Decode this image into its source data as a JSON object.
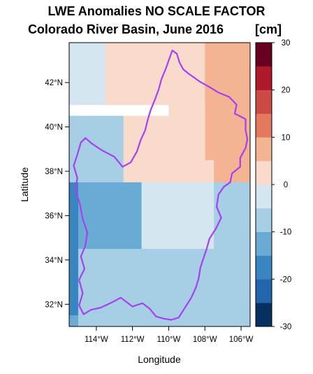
{
  "chart_data": {
    "type": "heatmap",
    "title": "LWE Anomalies NO SCALE FACTOR",
    "subtitle": "Colorado River Basin, June 2016",
    "units": "[cm]",
    "xlabel": "Longitude",
    "ylabel": "Latitude",
    "xlim": [
      -115.5,
      -105.5
    ],
    "ylim": [
      31,
      43.8
    ],
    "x_ticks": [
      {
        "value": -114,
        "label": "114°W"
      },
      {
        "value": -112,
        "label": "112°W"
      },
      {
        "value": -110,
        "label": "110°W"
      },
      {
        "value": -108,
        "label": "108°W"
      },
      {
        "value": -106,
        "label": "106°W"
      }
    ],
    "y_ticks": [
      {
        "value": 32,
        "label": "32°N"
      },
      {
        "value": 34,
        "label": "34°N"
      },
      {
        "value": 36,
        "label": "36°N"
      },
      {
        "value": 38,
        "label": "38°N"
      },
      {
        "value": 40,
        "label": "40°N"
      },
      {
        "value": 42,
        "label": "42°N"
      }
    ],
    "colorbar": {
      "range": [
        -30,
        30
      ],
      "step": 5,
      "ticks": [
        30,
        20,
        10,
        0,
        -10,
        -20,
        -30
      ],
      "tick_labels": [
        "30",
        "20",
        "10",
        "0",
        "-10",
        "-20",
        "-30"
      ],
      "colors_low_to_high": [
        "#053061",
        "#2166ac",
        "#3a84c0",
        "#6aabd3",
        "#a6cee4",
        "#d6e6f0",
        "#f9dbcc",
        "#f4b393",
        "#e3795f",
        "#cc4a44",
        "#b0182b",
        "#67001f"
      ]
    },
    "cells": [
      {
        "lon": [
          -115.5,
          -113.5
        ],
        "lat": [
          41.0,
          43.8
        ],
        "value": -2
      },
      {
        "lon": [
          -113.5,
          -110.0
        ],
        "lat": [
          41.0,
          43.8
        ],
        "value": 3
      },
      {
        "lon": [
          -110.0,
          -108.0
        ],
        "lat": [
          41.0,
          43.8
        ],
        "value": 3
      },
      {
        "lon": [
          -108.0,
          -105.5
        ],
        "lat": [
          41.0,
          43.8
        ],
        "value": 8
      },
      {
        "lon": [
          -108.0,
          -105.5
        ],
        "lat": [
          38.5,
          41.0
        ],
        "value": 8
      },
      {
        "lon": [
          -115.5,
          -112.5
        ],
        "lat": [
          37.5,
          40.5
        ],
        "value": -7
      },
      {
        "lon": [
          -112.5,
          -108.0
        ],
        "lat": [
          37.5,
          40.5
        ],
        "value": 3
      },
      {
        "lon": [
          -110.0,
          -108.0
        ],
        "lat": [
          40.5,
          41.0
        ],
        "value": 3
      },
      {
        "lon": [
          -108.0,
          -107.5
        ],
        "lat": [
          37.5,
          38.5
        ],
        "value": 3
      },
      {
        "lon": [
          -107.5,
          -105.5
        ],
        "lat": [
          37.5,
          38.5
        ],
        "value": 8
      },
      {
        "lon": [
          -115.5,
          -115.0
        ],
        "lat": [
          37.5,
          40.5
        ],
        "value": -7
      },
      {
        "lon": [
          -115.5,
          -115.0
        ],
        "lat": [
          31.5,
          37.5
        ],
        "value": -17
      },
      {
        "lon": [
          -115.0,
          -111.5
        ],
        "lat": [
          34.5,
          37.5
        ],
        "value": -13
      },
      {
        "lon": [
          -111.5,
          -107.5
        ],
        "lat": [
          34.5,
          37.5
        ],
        "value": -2
      },
      {
        "lon": [
          -107.5,
          -105.5
        ],
        "lat": [
          34.5,
          37.5
        ],
        "value": -8
      },
      {
        "lon": [
          -115.0,
          -105.5
        ],
        "lat": [
          31.5,
          34.5
        ],
        "value": -7
      },
      {
        "lon": [
          -115.5,
          -115.0
        ],
        "lat": [
          31.0,
          31.5
        ],
        "value": -13
      },
      {
        "lon": [
          -115.0,
          -113.5
        ],
        "lat": [
          31.0,
          31.5
        ],
        "value": -7
      },
      {
        "lon": [
          -113.5,
          -112.0
        ],
        "lat": [
          31.0,
          31.5
        ],
        "value": -8
      },
      {
        "lon": [
          -112.0,
          -105.5
        ],
        "lat": [
          31.0,
          31.5
        ],
        "value": -7
      }
    ],
    "basin_outline": [
      [
        -109.8,
        43.45
      ],
      [
        -109.55,
        43.3
      ],
      [
        -109.4,
        42.9
      ],
      [
        -109.2,
        42.6
      ],
      [
        -108.9,
        42.4
      ],
      [
        -108.55,
        42.2
      ],
      [
        -108.3,
        42.05
      ],
      [
        -107.75,
        41.8
      ],
      [
        -107.25,
        41.55
      ],
      [
        -106.65,
        41.35
      ],
      [
        -106.25,
        41.0
      ],
      [
        -106.35,
        40.6
      ],
      [
        -105.75,
        40.35
      ],
      [
        -105.75,
        39.85
      ],
      [
        -105.65,
        39.45
      ],
      [
        -105.75,
        39.05
      ],
      [
        -106.05,
        38.6
      ],
      [
        -106.05,
        38.2
      ],
      [
        -106.5,
        37.9
      ],
      [
        -106.6,
        37.5
      ],
      [
        -106.95,
        37.3
      ],
      [
        -107.25,
        36.95
      ],
      [
        -107.35,
        36.4
      ],
      [
        -107.1,
        35.9
      ],
      [
        -107.4,
        35.4
      ],
      [
        -107.75,
        34.95
      ],
      [
        -107.9,
        34.5
      ],
      [
        -108.05,
        34.15
      ],
      [
        -108.25,
        33.65
      ],
      [
        -108.35,
        33.15
      ],
      [
        -108.5,
        32.75
      ],
      [
        -108.75,
        32.3
      ],
      [
        -109.1,
        31.85
      ],
      [
        -109.45,
        31.4
      ],
      [
        -109.85,
        31.3
      ],
      [
        -110.25,
        31.35
      ],
      [
        -110.7,
        31.45
      ],
      [
        -111.05,
        31.8
      ],
      [
        -111.45,
        32.05
      ],
      [
        -112.0,
        31.9
      ],
      [
        -112.65,
        32.3
      ],
      [
        -113.1,
        32.1
      ],
      [
        -113.75,
        31.85
      ],
      [
        -114.3,
        31.75
      ],
      [
        -114.7,
        31.55
      ],
      [
        -114.95,
        31.95
      ],
      [
        -114.75,
        32.5
      ],
      [
        -114.95,
        33.1
      ],
      [
        -114.65,
        33.6
      ],
      [
        -114.85,
        34.15
      ],
      [
        -114.6,
        34.65
      ],
      [
        -114.5,
        35.25
      ],
      [
        -114.75,
        35.85
      ],
      [
        -114.9,
        36.5
      ],
      [
        -115.15,
        37.15
      ],
      [
        -115.05,
        37.7
      ],
      [
        -115.25,
        38.25
      ],
      [
        -115.05,
        38.75
      ],
      [
        -114.85,
        39.3
      ],
      [
        -114.6,
        39.5
      ],
      [
        -114.25,
        39.25
      ],
      [
        -113.7,
        38.95
      ],
      [
        -113.0,
        38.65
      ],
      [
        -112.55,
        38.2
      ],
      [
        -112.1,
        38.4
      ],
      [
        -111.75,
        38.9
      ],
      [
        -111.55,
        39.4
      ],
      [
        -111.3,
        39.85
      ],
      [
        -111.15,
        40.35
      ],
      [
        -111.0,
        40.75
      ],
      [
        -110.75,
        41.25
      ],
      [
        -110.55,
        41.7
      ],
      [
        -110.4,
        42.15
      ],
      [
        -110.15,
        42.65
      ],
      [
        -110.0,
        43.0
      ],
      [
        -109.8,
        43.45
      ]
    ],
    "outline_color": "#a540f3",
    "grid": false
  }
}
